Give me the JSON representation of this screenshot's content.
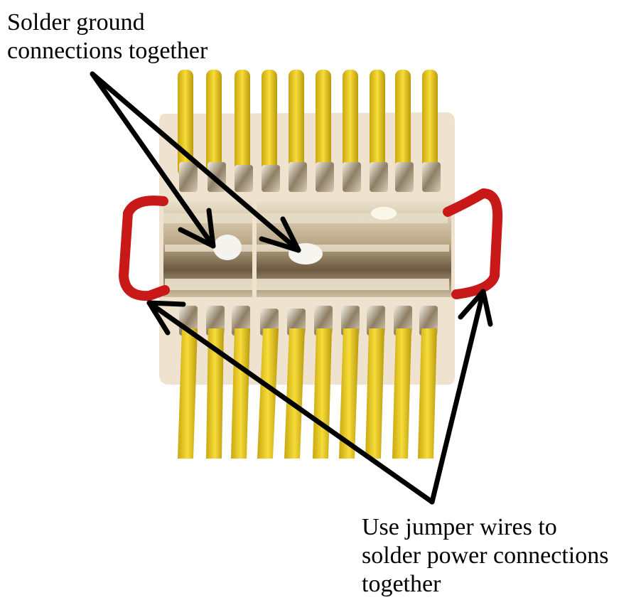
{
  "annotations": {
    "ground": {
      "lines": [
        "Solder ground",
        "connections together"
      ]
    },
    "power": {
      "lines": [
        "Use jumper wires to",
        "solder power connections",
        "together"
      ]
    }
  },
  "colors": {
    "wire_yellow": "#f2cf1d",
    "wire_yellow_shadow": "#c9a80f",
    "board": "#efe2cf",
    "solder": "#c9b99a",
    "solder_highlight": "#ece3cf",
    "jumper_red": "#c81818",
    "arrow": "#000000",
    "text": "#000000"
  },
  "icons": {
    "ground_arrows": "arrow-icon",
    "power_arrows": "arrow-icon"
  }
}
